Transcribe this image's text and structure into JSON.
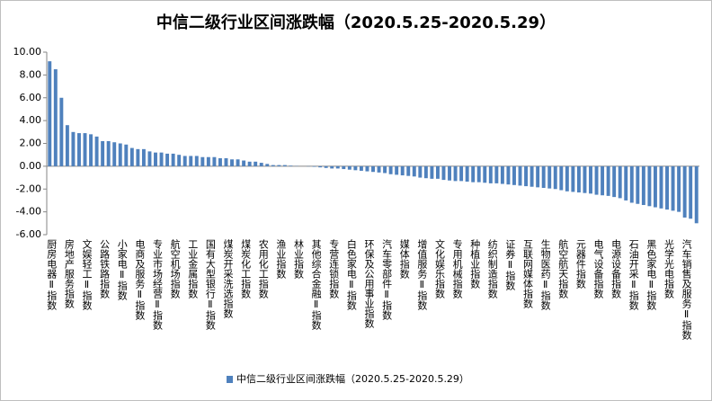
{
  "chart_data": {
    "type": "bar",
    "title": "中信二级行业区间涨跌幅（2020.5.25-2020.5.29）",
    "series": [
      {
        "name": "中信二级行业区间涨跌幅（2020.5.25-2020.5.29）",
        "color": "#4f81bd",
        "values": [
          9.2,
          8.5,
          6.0,
          3.6,
          3.0,
          2.9,
          2.9,
          2.8,
          2.6,
          2.2,
          2.2,
          2.1,
          2.0,
          1.9,
          1.6,
          1.5,
          1.5,
          1.3,
          1.2,
          1.2,
          1.1,
          1.1,
          1.0,
          0.9,
          0.9,
          0.9,
          0.8,
          0.8,
          0.8,
          0.7,
          0.7,
          0.6,
          0.6,
          0.5,
          0.4,
          0.4,
          0.3,
          0.2,
          0.1,
          0.1,
          0.1,
          0.05,
          0.02,
          0.0,
          -0.02,
          -0.05,
          -0.1,
          -0.15,
          -0.2,
          -0.2,
          -0.25,
          -0.3,
          -0.35,
          -0.4,
          -0.45,
          -0.5,
          -0.55,
          -0.6,
          -0.7,
          -0.75,
          -0.8,
          -0.85,
          -0.9,
          -1.0,
          -1.05,
          -1.1,
          -1.1,
          -1.2,
          -1.25,
          -1.3,
          -1.3,
          -1.35,
          -1.4,
          -1.4,
          -1.45,
          -1.5,
          -1.5,
          -1.55,
          -1.6,
          -1.65,
          -1.7,
          -1.75,
          -1.8,
          -1.85,
          -1.9,
          -1.95,
          -2.0,
          -2.1,
          -2.2,
          -2.25,
          -2.3,
          -2.35,
          -2.4,
          -2.5,
          -2.55,
          -2.6,
          -2.7,
          -2.8,
          -3.0,
          -3.2,
          -3.3,
          -3.4,
          -3.5,
          -3.6,
          -3.7,
          -3.8,
          -3.9,
          -4.0,
          -4.5,
          -4.6,
          -5.0
        ]
      }
    ],
    "categories": [
      "厨房电器Ⅱ指数",
      null,
      null,
      "房地产服务指数",
      null,
      null,
      "文娱轻工Ⅱ指数",
      null,
      null,
      "公路铁路指数",
      null,
      null,
      "小家电Ⅱ指数",
      null,
      null,
      "电商及服务Ⅱ指数",
      null,
      null,
      "专业市场经营Ⅱ指数",
      null,
      null,
      "航空机场指数",
      null,
      null,
      "工业金属指数",
      null,
      null,
      "国有大型银行Ⅱ指数",
      null,
      null,
      "煤炭开采洗选指数",
      null,
      null,
      "煤炭化工指数",
      null,
      null,
      "农用化工指数",
      null,
      null,
      "渔业指数",
      null,
      null,
      "林业指数",
      null,
      null,
      "其他综合金融Ⅱ指数",
      null,
      null,
      "专营连锁指数",
      null,
      null,
      "白色家电Ⅱ指数",
      null,
      null,
      "环保及公用事业指数",
      null,
      null,
      "汽车零部件Ⅱ指数",
      null,
      null,
      "媒体指数",
      null,
      null,
      "增值服务Ⅱ指数",
      null,
      null,
      "文化娱乐指数",
      null,
      null,
      "专用机械指数",
      null,
      null,
      "种植业指数",
      null,
      null,
      "纺织制造指数",
      null,
      null,
      "证券Ⅱ指数",
      null,
      null,
      "互联网媒体指数",
      null,
      null,
      "生物医药Ⅱ指数",
      null,
      null,
      "航空航天指数",
      null,
      null,
      "元器件指数",
      null,
      null,
      "电气设备指数",
      null,
      null,
      "电源设备指数",
      null,
      null,
      "石油开采Ⅱ指数",
      null,
      null,
      "黑色家电Ⅱ指数",
      null,
      null,
      "光学光电指数",
      null,
      null,
      "汽车销售及服务Ⅱ指数",
      null,
      null
    ],
    "ylim": [
      -6,
      10
    ],
    "yticks": [
      {
        "value": -6,
        "label": "-6.00"
      },
      {
        "value": -4,
        "label": "-4.00"
      },
      {
        "value": -2,
        "label": "-2.00"
      },
      {
        "value": 0,
        "label": "0.00"
      },
      {
        "value": 2,
        "label": "2.00"
      },
      {
        "value": 4,
        "label": "4.00"
      },
      {
        "value": 6,
        "label": "6.00"
      },
      {
        "value": 8,
        "label": "8.00"
      },
      {
        "value": 10,
        "label": "10.00"
      }
    ],
    "grid": false,
    "legend": "bottom"
  }
}
